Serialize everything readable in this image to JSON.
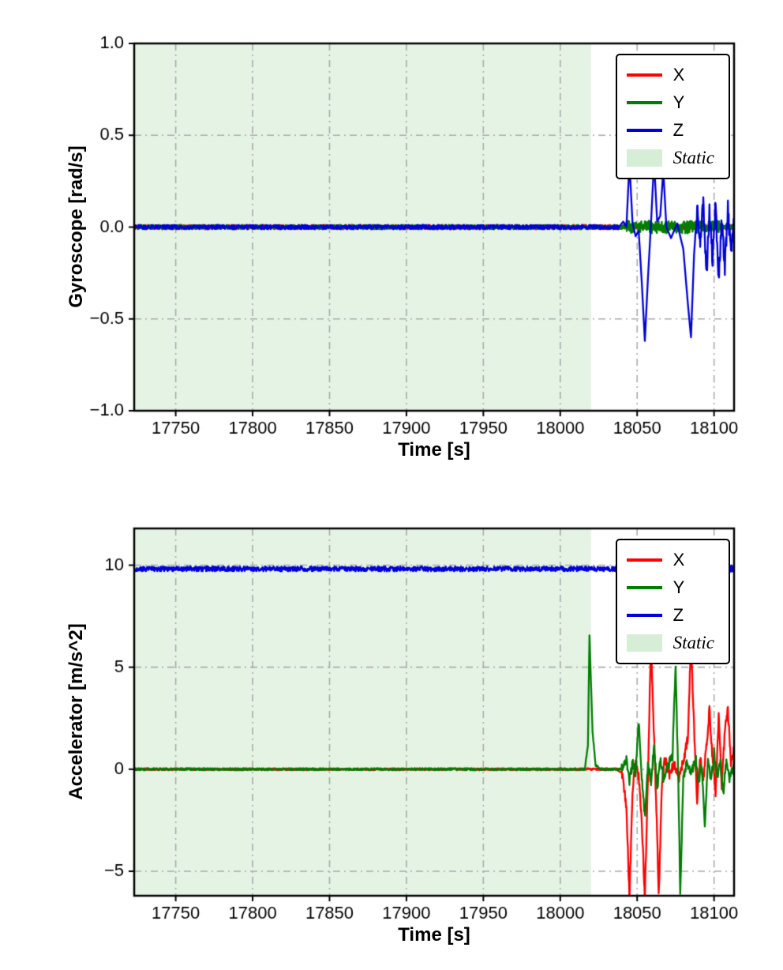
{
  "figure": {
    "background": "#ffffff"
  },
  "chart_data": [
    {
      "type": "line",
      "title": "",
      "xlabel": "Time [s]",
      "ylabel": "Gyroscope [rad/s]",
      "xlim": [
        17723,
        18113
      ],
      "ylim": [
        -1.0,
        1.0
      ],
      "grid": {
        "on": true,
        "color": "#ababab",
        "style": "dash-dot"
      },
      "xticks": {
        "values": [
          17750,
          17800,
          17850,
          17900,
          17950,
          18000,
          18050,
          18100
        ],
        "labels": [
          "17750",
          "17800",
          "17850",
          "17900",
          "17950",
          "18000",
          "18050",
          "18100"
        ]
      },
      "yticks": {
        "values": [
          -1.0,
          -0.5,
          0.0,
          0.5,
          1.0
        ],
        "labels": [
          "−1.0",
          "−0.5",
          "0.0",
          "0.5",
          "1.0"
        ]
      },
      "static_region": {
        "label": "Static",
        "x0": 17723,
        "x1": 18020,
        "color": "rgba(0,140,0,0.10)"
      },
      "legend": {
        "position": "upper right",
        "items": [
          {
            "label": "X",
            "color": "#ff0000",
            "type": "line"
          },
          {
            "label": "Y",
            "color": "#007d00",
            "type": "line"
          },
          {
            "label": "Z",
            "color": "#0000d9",
            "type": "line"
          },
          {
            "label": "Static",
            "color": "rgba(0,140,0,0.16)",
            "type": "patch",
            "italic": true
          }
        ]
      },
      "series": [
        {
          "name": "X",
          "color": "#ff0000",
          "points": [
            [
              17723,
              0
            ],
            [
              18113,
              0
            ]
          ],
          "noise": [
            {
              "range": [
                17723,
                18113
              ],
              "amp": 0.012
            }
          ]
        },
        {
          "name": "Y",
          "color": "#007d00",
          "points": [
            [
              17723,
              0
            ],
            [
              18113,
              0
            ]
          ],
          "noise": [
            {
              "range": [
                17723,
                18113
              ],
              "amp": 0.012
            },
            {
              "range": [
                18042,
                18105
              ],
              "amp": 0.035
            }
          ]
        },
        {
          "name": "Z",
          "color": "#0000d9",
          "points": [
            [
              17723,
              0
            ],
            [
              18038,
              0
            ],
            [
              18041,
              0.03
            ],
            [
              18043,
              0
            ],
            [
              18045,
              0.35
            ],
            [
              18047,
              0.02
            ],
            [
              18049,
              -0.05
            ],
            [
              18051,
              -0.02
            ],
            [
              18053,
              -0.3
            ],
            [
              18055,
              -0.62
            ],
            [
              18057,
              -0.28
            ],
            [
              18059,
              0.02
            ],
            [
              18061,
              0.36
            ],
            [
              18063,
              0.03
            ],
            [
              18065,
              0.06
            ],
            [
              18067,
              0.31
            ],
            [
              18069,
              0
            ],
            [
              18072,
              -0.06
            ],
            [
              18076,
              0.02
            ],
            [
              18080,
              -0.12
            ],
            [
              18083,
              -0.42
            ],
            [
              18085,
              -0.6
            ],
            [
              18087,
              -0.15
            ],
            [
              18089,
              0.1
            ],
            [
              18091,
              -0.06
            ],
            [
              18093,
              0.13
            ],
            [
              18095,
              -0.28
            ],
            [
              18097,
              0.08
            ],
            [
              18099,
              -0.18
            ],
            [
              18101,
              0.12
            ],
            [
              18103,
              -0.3
            ],
            [
              18105,
              0.05
            ],
            [
              18107,
              -0.22
            ],
            [
              18109,
              0.1
            ],
            [
              18111,
              -0.15
            ],
            [
              18113,
              0.02
            ]
          ],
          "noise": [
            {
              "range": [
                17723,
                18038
              ],
              "amp": 0.012
            },
            {
              "range": [
                18088,
                18113
              ],
              "amp": 0.05
            }
          ]
        }
      ]
    },
    {
      "type": "line",
      "title": "",
      "xlabel": "Time [s]",
      "ylabel": "Accelerator [m/s^2]",
      "xlim": [
        17723,
        18113
      ],
      "ylim": [
        -6.2,
        11.8
      ],
      "grid": {
        "on": true,
        "color": "#ababab",
        "style": "dash-dot"
      },
      "xticks": {
        "values": [
          17750,
          17800,
          17850,
          17900,
          17950,
          18000,
          18050,
          18100
        ],
        "labels": [
          "17750",
          "17800",
          "17850",
          "17900",
          "17950",
          "18000",
          "18050",
          "18100"
        ]
      },
      "yticks": {
        "values": [
          -5,
          0,
          5,
          10
        ],
        "labels": [
          "−5",
          "0",
          "5",
          "10"
        ]
      },
      "static_region": {
        "label": "Static",
        "x0": 17723,
        "x1": 18020,
        "color": "rgba(0,140,0,0.10)"
      },
      "legend": {
        "position": "upper right",
        "items": [
          {
            "label": "X",
            "color": "#ff0000",
            "type": "line"
          },
          {
            "label": "Y",
            "color": "#007d00",
            "type": "line"
          },
          {
            "label": "Z",
            "color": "#0000d9",
            "type": "line"
          },
          {
            "label": "Static",
            "color": "rgba(0,140,0,0.16)",
            "type": "patch",
            "italic": true
          }
        ]
      },
      "series": [
        {
          "name": "X",
          "color": "#ff0000",
          "points": [
            [
              17723,
              0
            ],
            [
              18037,
              0
            ],
            [
              18040,
              -0.2
            ],
            [
              18043,
              -1.8
            ],
            [
              18045,
              -6.3
            ],
            [
              18047,
              -1
            ],
            [
              18049,
              0.4
            ],
            [
              18051,
              -0.4
            ],
            [
              18053,
              -2.5
            ],
            [
              18055,
              -6.3
            ],
            [
              18057,
              -0.5
            ],
            [
              18059,
              6.4
            ],
            [
              18061,
              1.5
            ],
            [
              18063,
              -3
            ],
            [
              18064,
              -6.3
            ],
            [
              18066,
              -1
            ],
            [
              18068,
              0.5
            ],
            [
              18071,
              -0.3
            ],
            [
              18074,
              0.3
            ],
            [
              18077,
              -0.5
            ],
            [
              18080,
              0.4
            ],
            [
              18083,
              1.5
            ],
            [
              18085,
              6.3
            ],
            [
              18087,
              2
            ],
            [
              18089,
              -1.5
            ],
            [
              18091,
              0.5
            ],
            [
              18093,
              -0.5
            ],
            [
              18095,
              1
            ],
            [
              18097,
              2.9
            ],
            [
              18099,
              0.5
            ],
            [
              18101,
              -1.2
            ],
            [
              18103,
              2.6
            ],
            [
              18105,
              -0.8
            ],
            [
              18107,
              1.8
            ],
            [
              18109,
              2.9
            ],
            [
              18111,
              0.3
            ],
            [
              18113,
              1.2
            ]
          ],
          "noise": [
            {
              "range": [
                17723,
                18113
              ],
              "amp": 0.05
            },
            {
              "range": [
                18040,
                18113
              ],
              "amp": 0.25
            }
          ]
        },
        {
          "name": "Y",
          "color": "#007d00",
          "points": [
            [
              17723,
              0
            ],
            [
              18016,
              0
            ],
            [
              18018,
              1.2
            ],
            [
              18019,
              6.6
            ],
            [
              18021,
              1.8
            ],
            [
              18023,
              0.2
            ],
            [
              18026,
              0
            ],
            [
              18040,
              0
            ],
            [
              18043,
              0.5
            ],
            [
              18045,
              -0.6
            ],
            [
              18047,
              0.3
            ],
            [
              18049,
              -0.3
            ],
            [
              18051,
              2.4
            ],
            [
              18053,
              -0.5
            ],
            [
              18055,
              -2.4
            ],
            [
              18057,
              0.3
            ],
            [
              18059,
              -0.6
            ],
            [
              18061,
              1.2
            ],
            [
              18063,
              -1
            ],
            [
              18065,
              0.5
            ],
            [
              18067,
              -0.4
            ],
            [
              18070,
              0.2
            ],
            [
              18073,
              0.6
            ],
            [
              18075,
              5.2
            ],
            [
              18077,
              -1.5
            ],
            [
              18078,
              -6.1
            ],
            [
              18080,
              -0.5
            ],
            [
              18082,
              0.3
            ],
            [
              18085,
              -0.3
            ],
            [
              18088,
              0.6
            ],
            [
              18090,
              -0.8
            ],
            [
              18092,
              0.3
            ],
            [
              18094,
              -2.6
            ],
            [
              18096,
              0.4
            ],
            [
              18098,
              -0.6
            ],
            [
              18100,
              0.8
            ],
            [
              18102,
              -0.5
            ],
            [
              18104,
              0.5
            ],
            [
              18106,
              -1.3
            ],
            [
              18108,
              0.6
            ],
            [
              18110,
              -0.5
            ],
            [
              18113,
              0.2
            ]
          ],
          "noise": [
            {
              "range": [
                17723,
                18113
              ],
              "amp": 0.05
            },
            {
              "range": [
                18040,
                18113
              ],
              "amp": 0.25
            }
          ]
        },
        {
          "name": "Z",
          "color": "#0000d9",
          "points": [
            [
              17723,
              9.82
            ],
            [
              18113,
              9.82
            ]
          ],
          "noise": [
            {
              "range": [
                17723,
                18113
              ],
              "amp": 0.12
            },
            {
              "range": [
                18040,
                18113
              ],
              "amp": 0.18
            }
          ]
        }
      ]
    }
  ]
}
